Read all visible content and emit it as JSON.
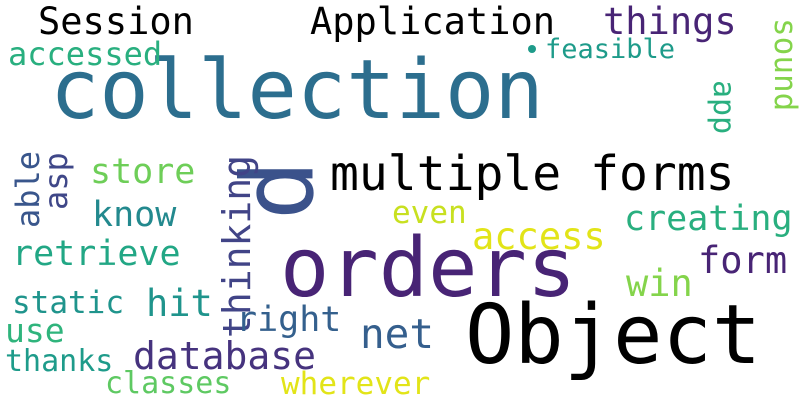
{
  "words": [
    {
      "id": "collection",
      "text": "collection",
      "color": "#2c6e8e"
    },
    {
      "id": "orders",
      "text": "orders",
      "color": "#482475"
    },
    {
      "id": "object",
      "text": "Object",
      "color": "#365c8d"
    },
    {
      "id": "p",
      "text": "p",
      "color": "#3b528b"
    },
    {
      "id": "multiple-forms",
      "text": "multiple forms",
      "color": "#1f958b"
    },
    {
      "id": "application",
      "text": "Application",
      "color": "#3dbc74"
    },
    {
      "id": "session",
      "text": "Session",
      "color": "#3dbc74"
    },
    {
      "id": "accessed",
      "text": "accessed",
      "color": "#29af7f"
    },
    {
      "id": "things",
      "text": "things",
      "color": "#482475"
    },
    {
      "id": "feasible",
      "text": "feasible",
      "color": "#1e9b8a"
    },
    {
      "id": "app",
      "text": "app",
      "color": "#29af7f"
    },
    {
      "id": "sound",
      "text": "sound",
      "color": "#84d44b"
    },
    {
      "id": "store",
      "text": "store",
      "color": "#6ece58"
    },
    {
      "id": "know",
      "text": "know",
      "color": "#23898e"
    },
    {
      "id": "able",
      "text": "able",
      "color": "#39568c"
    },
    {
      "id": "asp",
      "text": "asp",
      "color": "#3f4788"
    },
    {
      "id": "thinking",
      "text": "thinking",
      "color": "#414487"
    },
    {
      "id": "even",
      "text": "even",
      "color": "#c8e020"
    },
    {
      "id": "access",
      "text": "access",
      "color": "#e2e418"
    },
    {
      "id": "creating",
      "text": "creating",
      "color": "#29af7f"
    },
    {
      "id": "retrieve",
      "text": "retrieve",
      "color": "#22a785"
    },
    {
      "id": "form",
      "text": "form",
      "color": "#482475"
    },
    {
      "id": "win",
      "text": "win",
      "color": "#84d44b"
    },
    {
      "id": "static",
      "text": "static",
      "color": "#1f948c"
    },
    {
      "id": "hit",
      "text": "hit",
      "color": "#1f948c"
    },
    {
      "id": "right",
      "text": "right",
      "color": "#34608d"
    },
    {
      "id": "net",
      "text": "net",
      "color": "#355f8d"
    },
    {
      "id": "use",
      "text": "use",
      "color": "#2fb47c"
    },
    {
      "id": "database",
      "text": "database",
      "color": "#46337e"
    },
    {
      "id": "thanks",
      "text": "thanks",
      "color": "#1e9b8a"
    },
    {
      "id": "classes",
      "text": "classes",
      "color": "#5ec962"
    },
    {
      "id": "wherever",
      "text": "wherever",
      "color": "#e2e418"
    }
  ],
  "marks": [
    {
      "id": "dot",
      "color": "#1e9b8a"
    }
  ]
}
